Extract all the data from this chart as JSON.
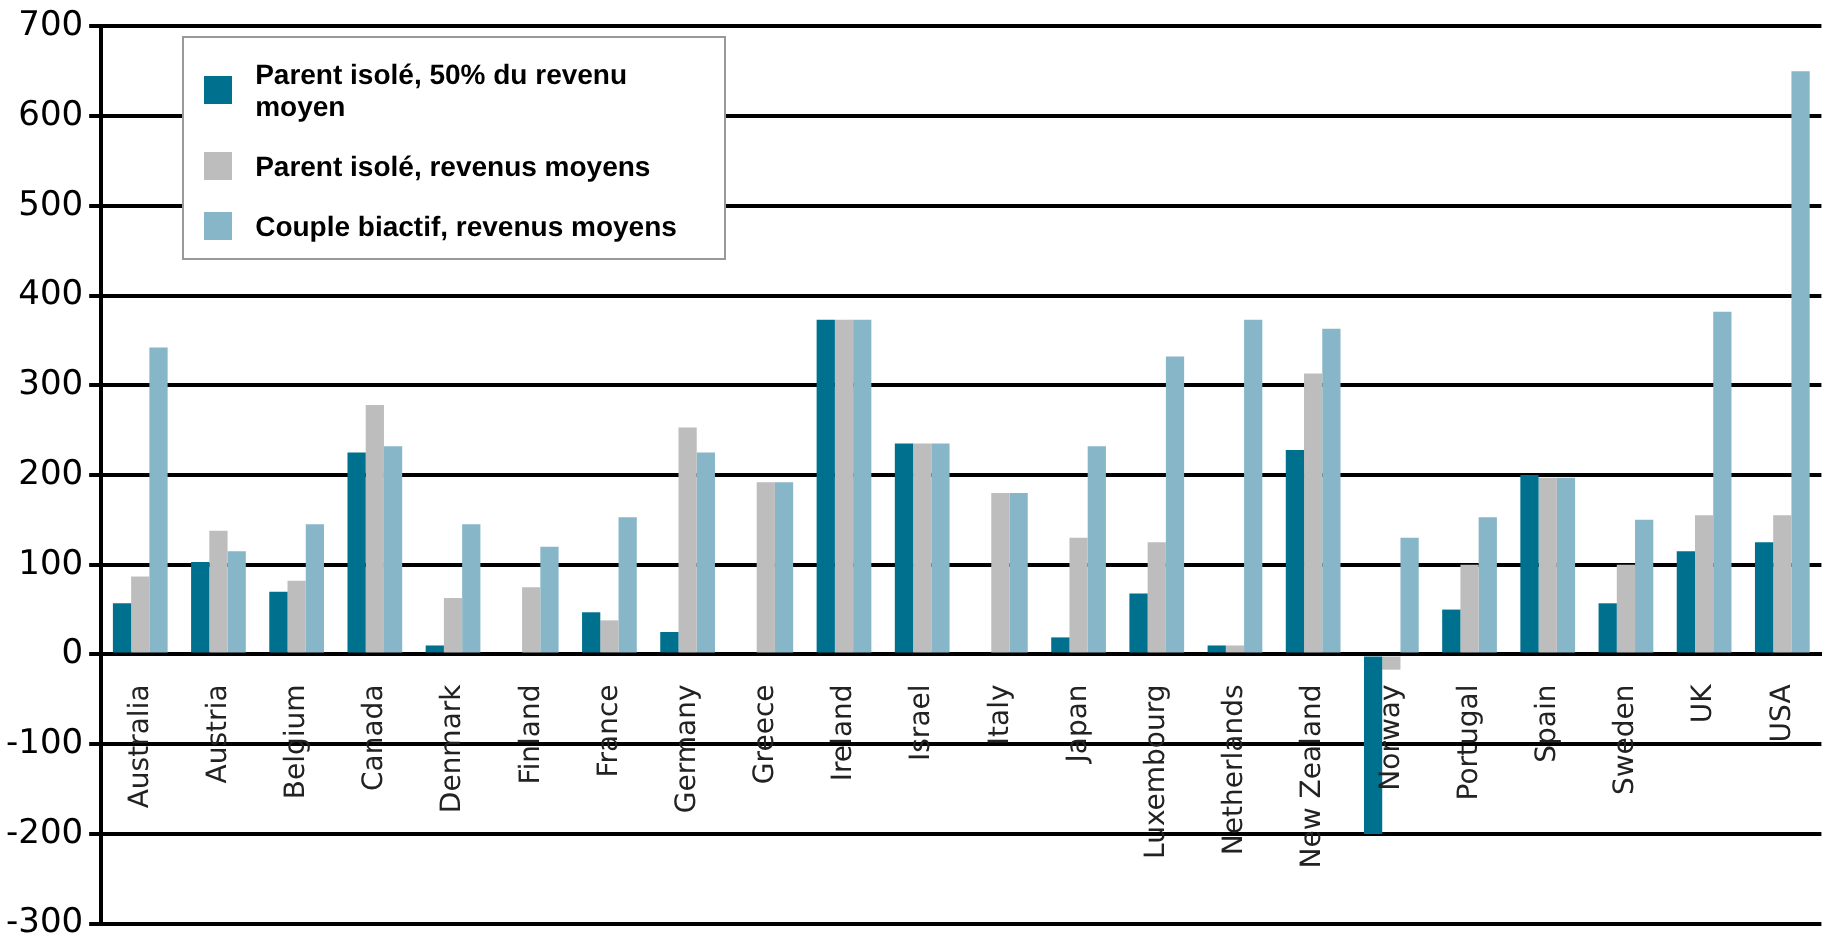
{
  "chart_data": {
    "type": "bar",
    "categories": [
      "Australia",
      "Austria",
      "Belgium",
      "Canada",
      "Denmark",
      "Finland",
      "France",
      "Germany",
      "Greece",
      "Ireland",
      "Israel",
      "Italy",
      "Japan",
      "Luxembourg",
      "Netherlands",
      "New Zealand",
      "Norway",
      "Portugal",
      "Spain",
      "Sweden",
      "UK",
      "USA"
    ],
    "series": [
      {
        "name": "Parent isolé, 50% du revenu moyen",
        "color": "#00708f",
        "values": [
          57,
          103,
          70,
          225,
          10,
          0,
          47,
          25,
          0,
          373,
          235,
          0,
          19,
          68,
          10,
          228,
          -200,
          50,
          200,
          57,
          115,
          125
        ]
      },
      {
        "name": "Parent isolé, revenus moyens",
        "color": "#bdbdbd",
        "values": [
          87,
          138,
          82,
          278,
          63,
          75,
          38,
          253,
          192,
          373,
          235,
          180,
          130,
          125,
          10,
          313,
          -17,
          100,
          197,
          100,
          155,
          155
        ]
      },
      {
        "name": "Couple biactif, revenus moyens",
        "color": "#86b6c8",
        "values": [
          342,
          115,
          145,
          232,
          145,
          120,
          153,
          225,
          192,
          373,
          235,
          180,
          232,
          332,
          373,
          363,
          130,
          153,
          197,
          150,
          382,
          650
        ]
      }
    ],
    "ylim": [
      -300,
      700
    ],
    "yticks": [
      -300,
      -200,
      -100,
      0,
      100,
      200,
      300,
      400,
      500,
      600,
      700
    ],
    "grid": "y",
    "legend": "top left"
  }
}
